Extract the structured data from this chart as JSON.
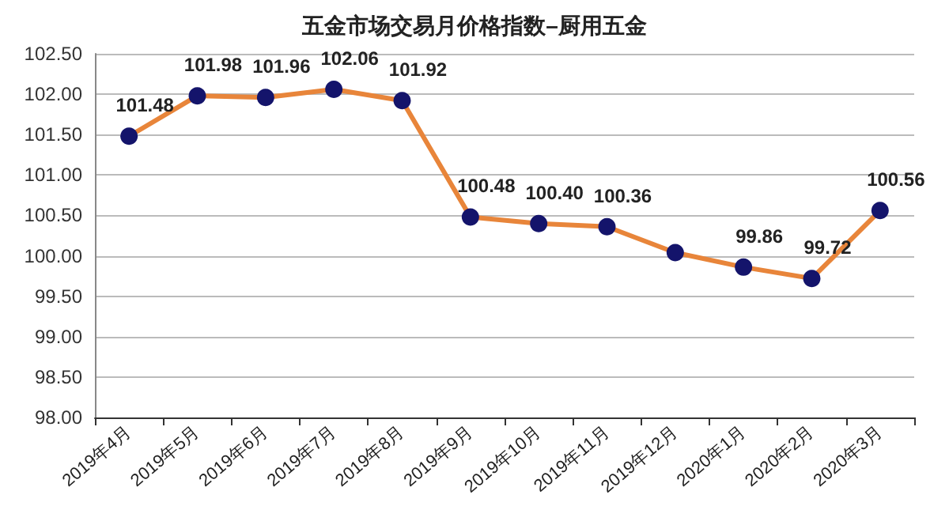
{
  "chart_data": {
    "type": "line",
    "title": "五金市场交易月价格指数–厨用五金",
    "categories": [
      "2019年4月",
      "2019年5月",
      "2019年6月",
      "2019年7月",
      "2019年8月",
      "2019年9月",
      "2019年10月",
      "2019年11月",
      "2019年12月",
      "2020年1月",
      "2020年2月",
      "2020年3月"
    ],
    "series": [
      {
        "color": "#e8853a",
        "values": [
          101.48,
          101.98,
          101.96,
          102.06,
          101.92,
          100.48,
          100.4,
          100.36,
          100.04,
          99.86,
          99.72,
          100.56
        ],
        "value_labels": [
          "101.48",
          "101.98",
          "101.96",
          "102.06",
          "101.92",
          "100.48",
          "100.40",
          "100.36",
          null,
          "99.86",
          "99.72",
          "100.56"
        ]
      }
    ],
    "ylim": [
      98,
      102.5
    ],
    "yticks": [
      {
        "value": 98,
        "label": "98.00"
      },
      {
        "value": 98.5,
        "label": "98.50"
      },
      {
        "value": 99,
        "label": "99.00"
      },
      {
        "value": 99.5,
        "label": "99.50"
      },
      {
        "value": 100,
        "label": "100.00"
      },
      {
        "value": 100.5,
        "label": "100.50"
      },
      {
        "value": 101,
        "label": "101.00"
      },
      {
        "value": 101.5,
        "label": "101.50"
      },
      {
        "value": 102,
        "label": "102.00"
      },
      {
        "value": 102.5,
        "label": "102.50"
      }
    ],
    "grid": "y",
    "marker": "circle",
    "line_style": "solid"
  }
}
